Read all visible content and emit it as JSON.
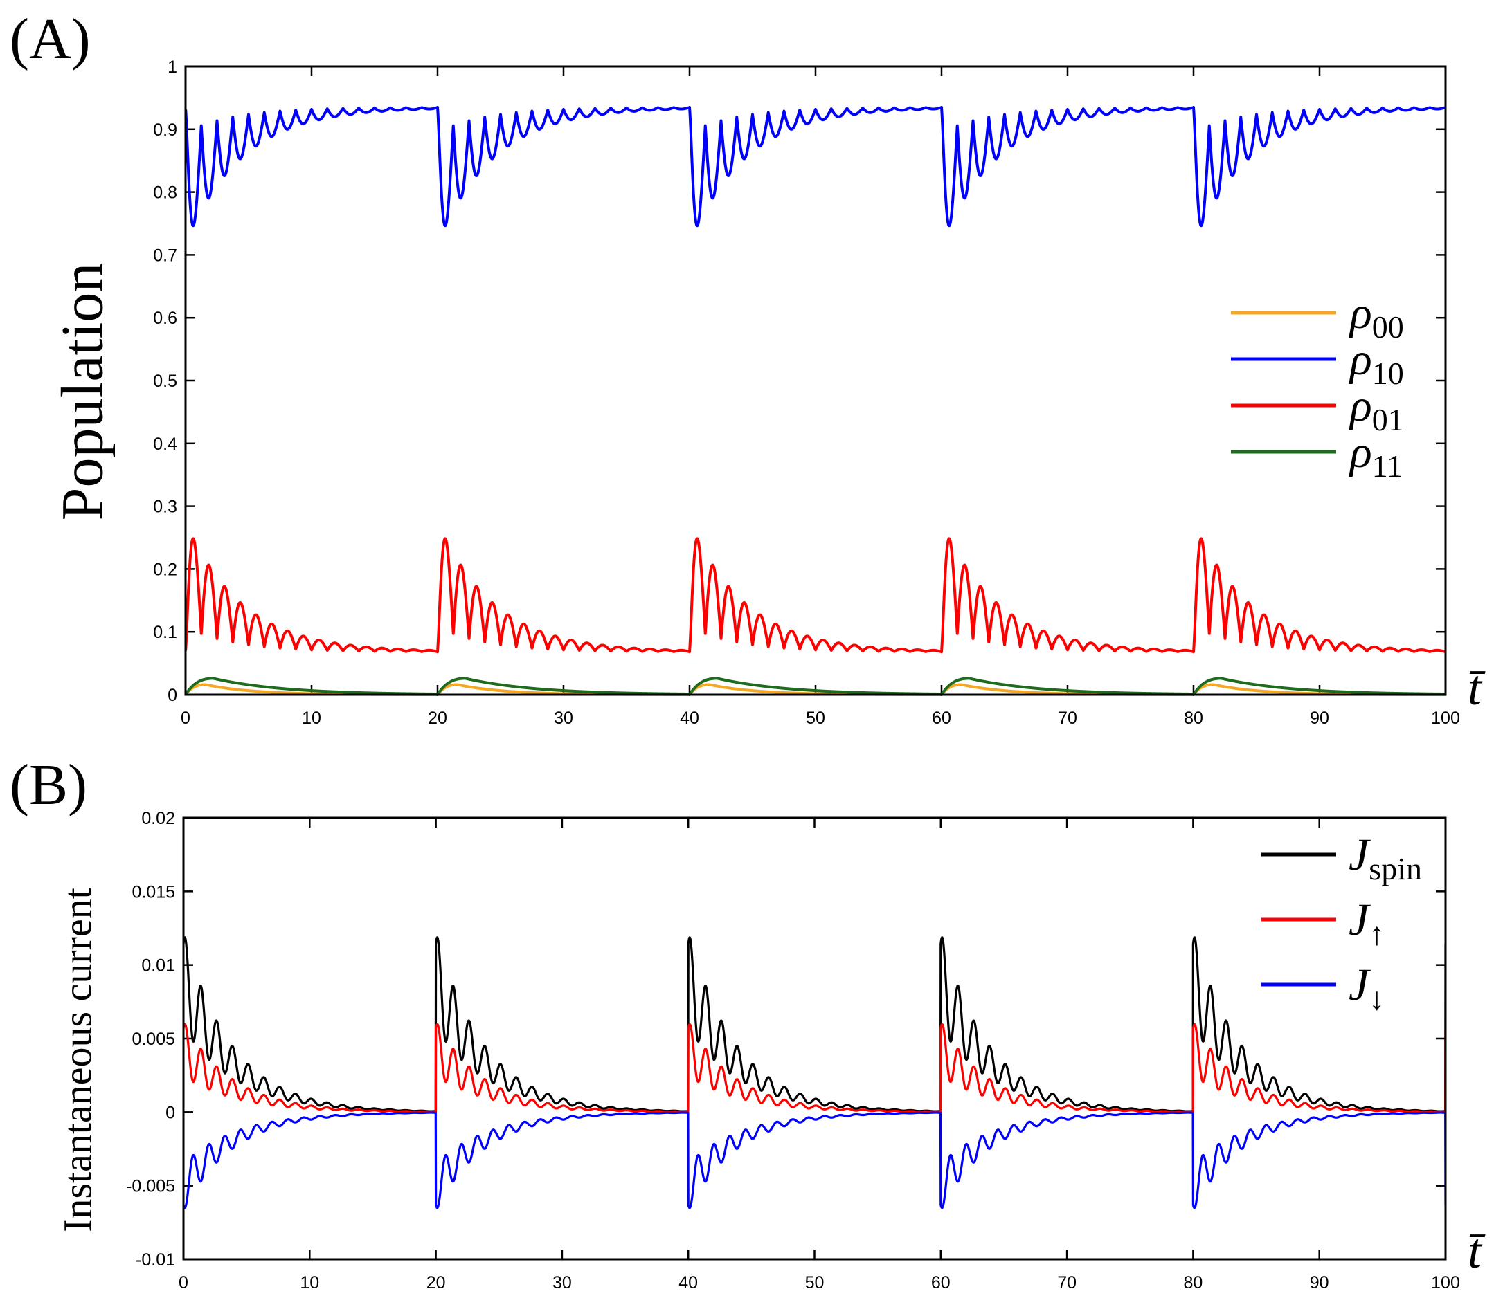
{
  "chart_data": [
    {
      "panel": "(A)",
      "type": "line",
      "ylabel": "Population",
      "xlabel": "t̄",
      "xlim": [
        0,
        100
      ],
      "ylim": [
        0,
        1
      ],
      "xticks": [
        "0",
        "10",
        "20",
        "30",
        "40",
        "50",
        "60",
        "70",
        "80",
        "90",
        "100"
      ],
      "yticks": [
        "0",
        "0.1",
        "0.2",
        "0.3",
        "0.4",
        "0.5",
        "0.6",
        "0.7",
        "0.8",
        "0.9",
        "1"
      ],
      "period": 20,
      "legend_position": "right",
      "series": [
        {
          "name": "ρ00",
          "label_main": "ρ",
          "label_sub": "00",
          "color": "#f5a623",
          "model": {
            "kind": "hump",
            "peak": 0.016,
            "peak_time": 1.6,
            "decay": 3.0
          }
        },
        {
          "name": "ρ10",
          "label_main": "ρ",
          "label_sub": "10",
          "color": "#0000ff",
          "model": {
            "kind": "osc",
            "steady": 0.935,
            "start": 0.93,
            "amplitude": -0.19,
            "period": 1.25,
            "decay": 4.5,
            "rise": 0.15,
            "baseline_dip": -0.04,
            "dip_decay": 4.0
          }
        },
        {
          "name": "ρ01",
          "label_main": "ρ",
          "label_sub": "01",
          "color": "#ff0000",
          "model": {
            "kind": "osc",
            "steady": 0.068,
            "start": 0.07,
            "amplitude": 0.18,
            "period": 1.25,
            "decay": 4.5,
            "rise": 0.15,
            "baseline_dip": 0.04,
            "dip_decay": 4.0
          }
        },
        {
          "name": "ρ11",
          "label_main": "ρ",
          "label_sub": "11",
          "color": "#1e6b1e",
          "model": {
            "kind": "hump",
            "peak": 0.026,
            "peak_time": 2.2,
            "decay": 4.5
          }
        }
      ]
    },
    {
      "panel": "(B)",
      "type": "line",
      "ylabel": "Instantaneous current",
      "xlabel": "t̄",
      "xlim": [
        0,
        100
      ],
      "ylim": [
        -0.01,
        0.02
      ],
      "xticks": [
        "0",
        "10",
        "20",
        "30",
        "40",
        "50",
        "60",
        "70",
        "80",
        "90",
        "100"
      ],
      "yticks": [
        "-0.01",
        "-0.005",
        "0",
        "0.005",
        "0.01",
        "0.015",
        "0.02"
      ],
      "period": 20,
      "legend_position": "top-right",
      "series": [
        {
          "name": "Jspin",
          "label_main": "J",
          "label_sub": "spin",
          "color": "#000000",
          "model": {
            "kind": "current",
            "base": 0.0105,
            "amplitude": 0.0065,
            "period": 1.25,
            "decay": 3.6,
            "base_decay": 4.2
          }
        },
        {
          "name": "J↑",
          "label_main": "J",
          "label_sub": "↑",
          "color": "#ff0000",
          "model": {
            "kind": "current",
            "base": 0.0045,
            "amplitude": 0.0037,
            "period": 1.25,
            "decay": 3.6,
            "base_decay": 4.2
          }
        },
        {
          "name": "J↓",
          "label_main": "J",
          "label_sub": "↓",
          "color": "#0000ff",
          "model": {
            "kind": "current",
            "base": -0.0064,
            "amplitude": -0.0032,
            "period": 1.25,
            "decay": 3.6,
            "base_decay": 4.2
          }
        }
      ]
    }
  ]
}
